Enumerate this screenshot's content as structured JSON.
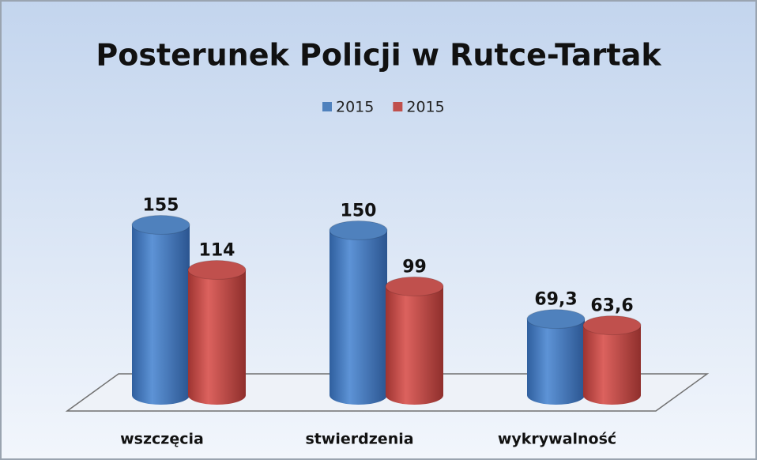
{
  "chart_data": {
    "type": "bar3d",
    "title": "Posterunek Policji w Rutce-Tartak",
    "categories": [
      "wszczęcia",
      "stwierdzenia",
      "wykrywalność"
    ],
    "series": [
      {
        "name": "2015",
        "color": "#4f81bd",
        "values": [
          155,
          150,
          69.3
        ],
        "value_labels": [
          "155",
          "150",
          "69,3"
        ]
      },
      {
        "name": "2015",
        "color": "#c0504d",
        "values": [
          114,
          99,
          63.6
        ],
        "value_labels": [
          "114",
          "99",
          "63,6"
        ]
      }
    ],
    "legend": "top"
  }
}
